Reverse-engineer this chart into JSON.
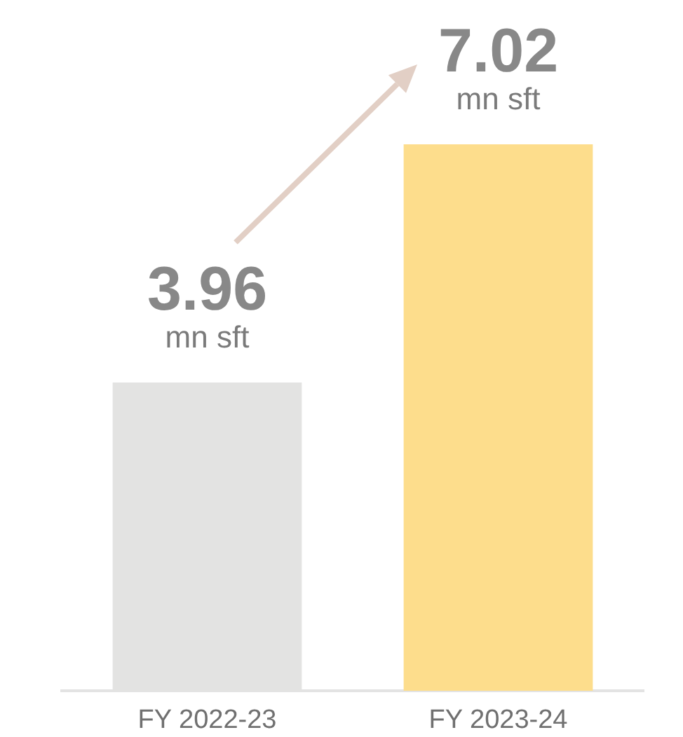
{
  "chart_data": {
    "type": "bar",
    "categories": [
      "FY 2022-23",
      "FY 2023-24"
    ],
    "values": [
      3.96,
      7.02
    ],
    "colors": [
      "#e3e3e2",
      "#fddd8c"
    ],
    "data_labels": true,
    "annotations": [
      {
        "text": "mn sft",
        "x": "FY 2022-23",
        "y": 3.96
      },
      {
        "text": "mn sft",
        "x": "FY 2023-24",
        "y": 7.02
      }
    ]
  }
}
